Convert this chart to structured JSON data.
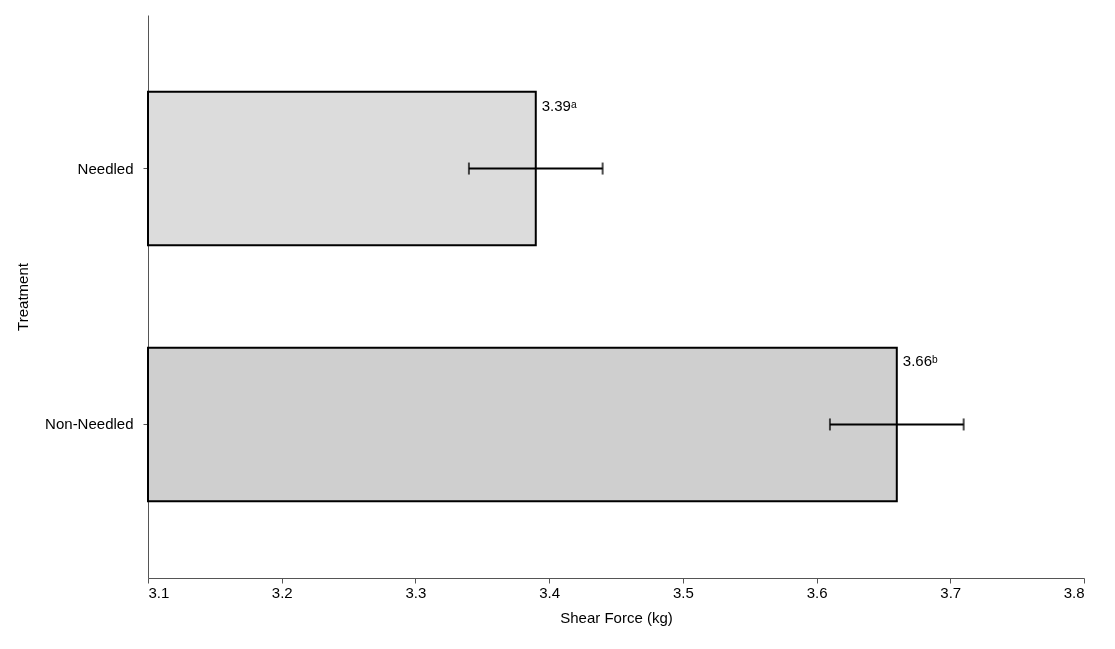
{
  "chart_data": {
    "type": "bar",
    "orientation": "horizontal",
    "xlabel": "Shear Force (kg)",
    "ylabel": "Treatment",
    "categories": [
      "Needled",
      "Non-Needled"
    ],
    "values": [
      3.39,
      3.66
    ],
    "colors": [
      "#dcdcdc",
      "#cfcfcf"
    ],
    "errors": [
      0.05,
      0.05
    ],
    "value_labels": [
      "3.39ᵃ",
      "3.66ᵇ"
    ],
    "xlim": [
      3.1,
      3.8
    ],
    "xticks": [
      3.1,
      3.2,
      3.3,
      3.4,
      3.5,
      3.6,
      3.7,
      3.8
    ],
    "grid": false
  }
}
